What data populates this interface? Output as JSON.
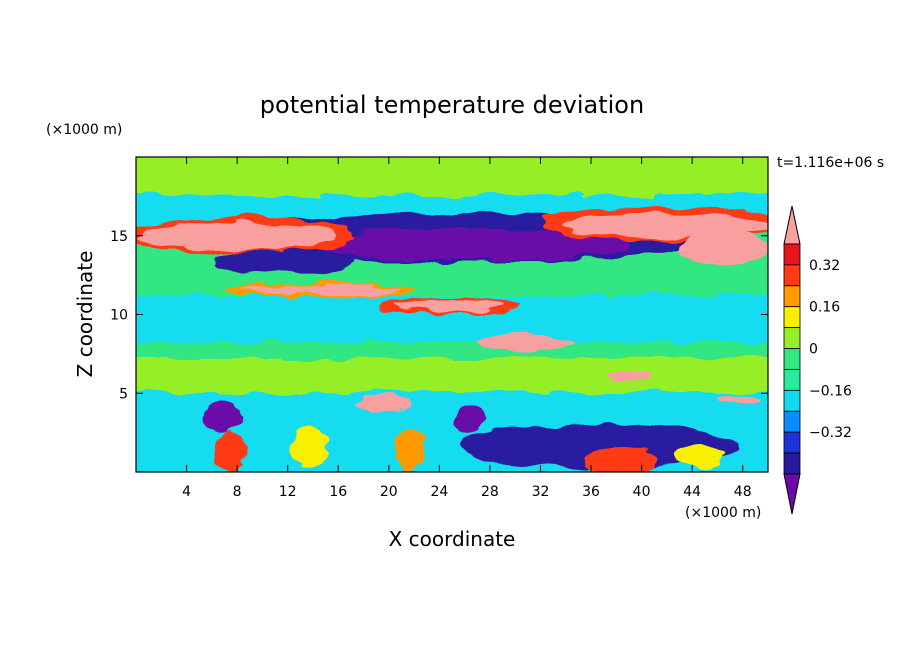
{
  "chart_data": {
    "type": "heatmap",
    "title": "potential temperature deviation",
    "xlabel": "X coordinate",
    "ylabel": "Z coordinate",
    "x_unit": "(×1000 m)",
    "y_unit": "(×1000 m)",
    "time_label": "t=1.116e+06 s",
    "xlim": [
      0,
      50
    ],
    "ylim": [
      0,
      20
    ],
    "x_ticks": [
      4,
      8,
      12,
      16,
      20,
      24,
      28,
      32,
      36,
      40,
      44,
      48
    ],
    "y_ticks": [
      5,
      10,
      15
    ],
    "colorbar": {
      "levels": [
        -0.48,
        -0.4,
        -0.32,
        -0.24,
        -0.16,
        -0.08,
        0,
        0.08,
        0.16,
        0.24,
        0.32,
        0.4
      ],
      "tick_values": [
        0.32,
        0.16,
        0,
        -0.16,
        -0.32
      ],
      "tick_labels": [
        "0.32",
        "0.16",
        "0",
        "−0.16",
        "−0.32"
      ],
      "colors": [
        "#6a0aa8",
        "#2a1aa0",
        "#1e32d8",
        "#0a8cff",
        "#14dcf0",
        "#2aeaa0",
        "#32e682",
        "#96ee28",
        "#f8f000",
        "#ff9a00",
        "#ff3a14",
        "#e8141e",
        "#f8a0a0"
      ]
    }
  }
}
